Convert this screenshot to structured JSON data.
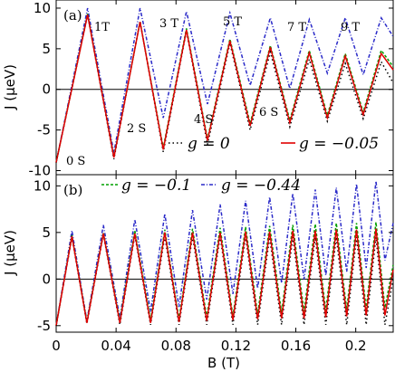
{
  "chart_data": [
    {
      "panel_label": "(a)",
      "type": "line",
      "ylabel": "J (μeV)",
      "ylim": [
        -10.5,
        11
      ],
      "xlim": [
        0,
        0.225
      ],
      "yticks": [
        "-10",
        "-5",
        "0",
        "5",
        "10"
      ],
      "ytick_values": [
        -10,
        -5,
        0,
        5,
        10
      ],
      "show_x_ticklabels": false,
      "zero_line": true,
      "annotations": [
        "0 S",
        "1T",
        "2 S",
        "3 T",
        "4 S",
        "5 T",
        "6 S",
        "7 T",
        "9 T"
      ],
      "legend": [
        "g = 0",
        "g = −0.05"
      ],
      "series": [
        {
          "name": "g = 0",
          "color": "#000000",
          "dash": "dotted",
          "x": [
            0,
            0.021,
            0.0385,
            0.056,
            0.0715,
            0.087,
            0.101,
            0.116,
            0.1295,
            0.143,
            0.156,
            0.169,
            0.181,
            0.193,
            0.205,
            0.217,
            0.225
          ],
          "y": [
            -9.0,
            9.2,
            -8.6,
            8.4,
            -7.7,
            7.2,
            -6.8,
            5.7,
            -5.0,
            4.6,
            -4.6,
            3.7,
            -3.9,
            3.2,
            -3.6,
            3.4,
            0.8
          ]
        },
        {
          "name": "g = −0.05",
          "color": "#e00000",
          "dash": "solid",
          "x": [
            0,
            0.021,
            0.0385,
            0.056,
            0.0715,
            0.087,
            0.101,
            0.116,
            0.1295,
            0.143,
            0.156,
            0.169,
            0.181,
            0.193,
            0.205,
            0.217,
            0.225
          ],
          "y": [
            -9.0,
            9.2,
            -8.4,
            8.3,
            -7.4,
            7.3,
            -6.3,
            6.0,
            -4.5,
            5.2,
            -4.1,
            4.5,
            -3.5,
            4.1,
            -3.1,
            4.4,
            2.4
          ]
        },
        {
          "name": "g = −0.1",
          "color": "#00a000",
          "dash": "dashed",
          "x": [
            0,
            0.021,
            0.0385,
            0.056,
            0.0715,
            0.087,
            0.101,
            0.116,
            0.1295,
            0.143,
            0.156,
            0.169,
            0.181,
            0.193,
            0.205,
            0.217,
            0.225
          ],
          "y": [
            -9.0,
            9.3,
            -8.3,
            8.3,
            -7.2,
            7.5,
            -6.1,
            6.2,
            -4.2,
            5.4,
            -3.8,
            4.8,
            -3.2,
            4.4,
            -2.8,
            4.8,
            2.8
          ]
        },
        {
          "name": "g = −0.44",
          "color": "#2a2ac8",
          "dash": "dash-dot",
          "x": [
            0,
            0.021,
            0.0385,
            0.056,
            0.0715,
            0.087,
            0.101,
            0.116,
            0.1295,
            0.143,
            0.156,
            0.169,
            0.181,
            0.193,
            0.205,
            0.217,
            0.225
          ],
          "y": [
            -9.0,
            10.0,
            -7.8,
            10.0,
            -3.5,
            9.6,
            -1.8,
            9.4,
            0.5,
            8.8,
            0.1,
            8.6,
            2.0,
            8.8,
            1.8,
            8.8,
            6.5
          ]
        }
      ]
    },
    {
      "panel_label": "(b)",
      "type": "line",
      "ylabel": "J (μeV)",
      "xlabel": "B (T)",
      "ylim": [
        -5.7,
        11.2
      ],
      "xlim": [
        0,
        0.225
      ],
      "yticks": [
        "-5",
        "0",
        "5",
        "10"
      ],
      "ytick_values": [
        -5,
        0,
        5,
        10
      ],
      "xticks": [
        "0",
        "0.04",
        "0.08",
        "0.12",
        "0.16",
        "0.2"
      ],
      "xtick_values": [
        0,
        0.04,
        0.08,
        0.12,
        0.16,
        0.2
      ],
      "zero_line": true,
      "legend": [
        "g = −0.1",
        "g = −0.44"
      ],
      "series": [
        {
          "name": "g = 0",
          "color": "#000000",
          "dash": "dotted",
          "x": [
            0,
            0.0105,
            0.0205,
            0.0315,
            0.0425,
            0.0525,
            0.063,
            0.0725,
            0.082,
            0.091,
            0.1005,
            0.1095,
            0.118,
            0.1265,
            0.1345,
            0.1425,
            0.1505,
            0.158,
            0.1655,
            0.173,
            0.18,
            0.187,
            0.194,
            0.2005,
            0.207,
            0.2135,
            0.2195,
            0.225
          ],
          "y": [
            -5.0,
            4.5,
            -4.8,
            4.8,
            -4.9,
            4.7,
            -4.9,
            4.6,
            -4.9,
            4.6,
            -4.9,
            4.6,
            -4.9,
            4.6,
            -4.9,
            4.5,
            -4.9,
            4.5,
            -4.9,
            4.5,
            -4.9,
            4.5,
            -4.9,
            4.5,
            -4.9,
            4.5,
            -4.9,
            0.0
          ]
        },
        {
          "name": "g = −0.05",
          "color": "#e00000",
          "dash": "solid",
          "x": [
            0,
            0.0105,
            0.0205,
            0.0315,
            0.0425,
            0.0525,
            0.063,
            0.0725,
            0.082,
            0.091,
            0.1005,
            0.1095,
            0.118,
            0.1265,
            0.1345,
            0.1425,
            0.1505,
            0.158,
            0.1655,
            0.173,
            0.18,
            0.187,
            0.194,
            0.2005,
            0.207,
            0.2135,
            0.2195,
            0.225
          ],
          "y": [
            -5.0,
            4.6,
            -4.7,
            4.9,
            -4.7,
            4.9,
            -4.7,
            5.0,
            -4.6,
            5.0,
            -4.5,
            5.0,
            -4.4,
            5.1,
            -4.3,
            5.1,
            -4.2,
            5.2,
            -4.2,
            5.2,
            -4.1,
            5.3,
            -4.0,
            5.3,
            -3.9,
            5.4,
            -3.9,
            1.0
          ]
        },
        {
          "name": "g = −0.1",
          "color": "#00a000",
          "dash": "dashed",
          "x": [
            0,
            0.0105,
            0.0205,
            0.0315,
            0.0425,
            0.0525,
            0.063,
            0.0725,
            0.082,
            0.091,
            0.1005,
            0.1095,
            0.118,
            0.1265,
            0.1345,
            0.1425,
            0.1505,
            0.158,
            0.1655,
            0.173,
            0.18,
            0.187,
            0.194,
            0.2005,
            0.207,
            0.2135,
            0.2195,
            0.225
          ],
          "y": [
            -5.0,
            4.7,
            -4.6,
            5.0,
            -4.5,
            5.2,
            -4.4,
            5.3,
            -4.3,
            5.4,
            -4.1,
            5.5,
            -4.0,
            5.6,
            -3.8,
            5.7,
            -3.6,
            5.8,
            -3.5,
            5.9,
            -3.4,
            6.0,
            -3.3,
            6.0,
            -3.2,
            6.1,
            -3.1,
            1.5
          ]
        },
        {
          "name": "g = −0.44",
          "color": "#2a2ac8",
          "dash": "dash-dot",
          "x": [
            0,
            0.0105,
            0.0205,
            0.0315,
            0.0425,
            0.0525,
            0.063,
            0.0725,
            0.082,
            0.091,
            0.1005,
            0.1095,
            0.118,
            0.1265,
            0.1345,
            0.1425,
            0.1505,
            0.158,
            0.1655,
            0.173,
            0.18,
            0.187,
            0.194,
            0.2005,
            0.207,
            0.2135,
            0.2195,
            0.225
          ],
          "y": [
            -5.0,
            5.2,
            -4.5,
            5.8,
            -4.2,
            6.4,
            -3.5,
            7.0,
            -3.0,
            7.4,
            -2.2,
            8.0,
            -1.6,
            8.4,
            -1.0,
            8.8,
            -0.4,
            9.2,
            0.0,
            9.6,
            0.4,
            9.8,
            0.8,
            10.2,
            1.2,
            10.5,
            2.0,
            6.0
          ]
        }
      ]
    }
  ]
}
